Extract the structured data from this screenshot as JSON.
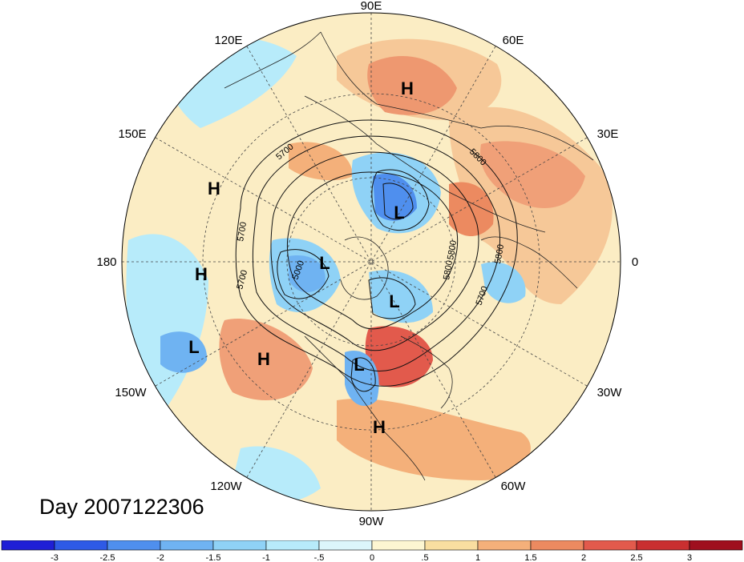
{
  "lon_labels": {
    "n90e": "90E",
    "n120e": "120E",
    "n60e": "60E",
    "n150e": "150E",
    "n30e": "30E",
    "n180": "180",
    "n0": "0",
    "n150w": "150W",
    "n30w": "30W",
    "n120w": "120W",
    "n60w": "60W",
    "n90w": "90W"
  },
  "pressure_centers": [
    {
      "label": "H",
      "region": "central-siberia"
    },
    {
      "label": "L",
      "region": "barents-kara"
    },
    {
      "label": "H",
      "region": "kamchatka"
    },
    {
      "label": "H",
      "region": "dateline"
    },
    {
      "label": "L",
      "region": "alaska-siberia"
    },
    {
      "label": "L",
      "region": "greenland-canada"
    },
    {
      "label": "L",
      "region": "north-pacific"
    },
    {
      "label": "H",
      "region": "northeast-pacific"
    },
    {
      "label": "L",
      "region": "central-north-america"
    },
    {
      "label": "H",
      "region": "gulf-of-mexico"
    }
  ],
  "contour_labels": [
    "5700",
    "5700",
    "5700",
    "5000",
    "5800",
    "5800",
    "5700",
    "5800",
    "5800"
  ],
  "day_text": "Day 2007122306",
  "colorbar": {
    "colors": [
      "#1f1fd6",
      "#2e5ae6",
      "#4f8fee",
      "#6fb3f2",
      "#8fd2f6",
      "#b7ebfa",
      "#dcf6fb",
      "#fdf6d2",
      "#f9dea0",
      "#f4b07a",
      "#ec8a60",
      "#e25a4c",
      "#c92f30",
      "#9f0f1e"
    ],
    "ticks": [
      "-3",
      "-2.5",
      "-2",
      "-1.5",
      "-1",
      "-.5",
      "0",
      ".5",
      "1",
      "1.5",
      "2",
      "2.5",
      "3"
    ]
  }
}
